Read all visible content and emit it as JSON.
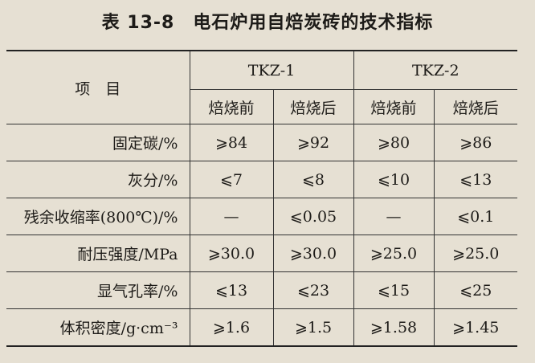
{
  "title": "表 13-8　电石炉用自焙炭砖的技术指标",
  "table": {
    "header": {
      "item": "项　目",
      "groups": [
        "TKZ-1",
        "TKZ-2"
      ],
      "subheaders": [
        "焙烧前",
        "焙烧后",
        "焙烧前",
        "焙烧后"
      ]
    },
    "rows": [
      [
        "固定碳/%",
        "⩾84",
        "⩾92",
        "⩾80",
        "⩾86"
      ],
      [
        "灰分/%",
        "⩽7",
        "⩽8",
        "⩽10",
        "⩽13"
      ],
      [
        "残余收缩率(800℃)/%",
        "—",
        "⩽0.05",
        "—",
        "⩽0.1"
      ],
      [
        "耐压强度/MPa",
        "⩾30.0",
        "⩾30.0",
        "⩾25.0",
        "⩾25.0"
      ],
      [
        "显气孔率/%",
        "⩽13",
        "⩽23",
        "⩽15",
        "⩽25"
      ],
      [
        "体积密度/g·cm⁻³",
        "⩾1.6",
        "⩾1.5",
        "⩾1.58",
        "⩾1.45"
      ]
    ]
  }
}
